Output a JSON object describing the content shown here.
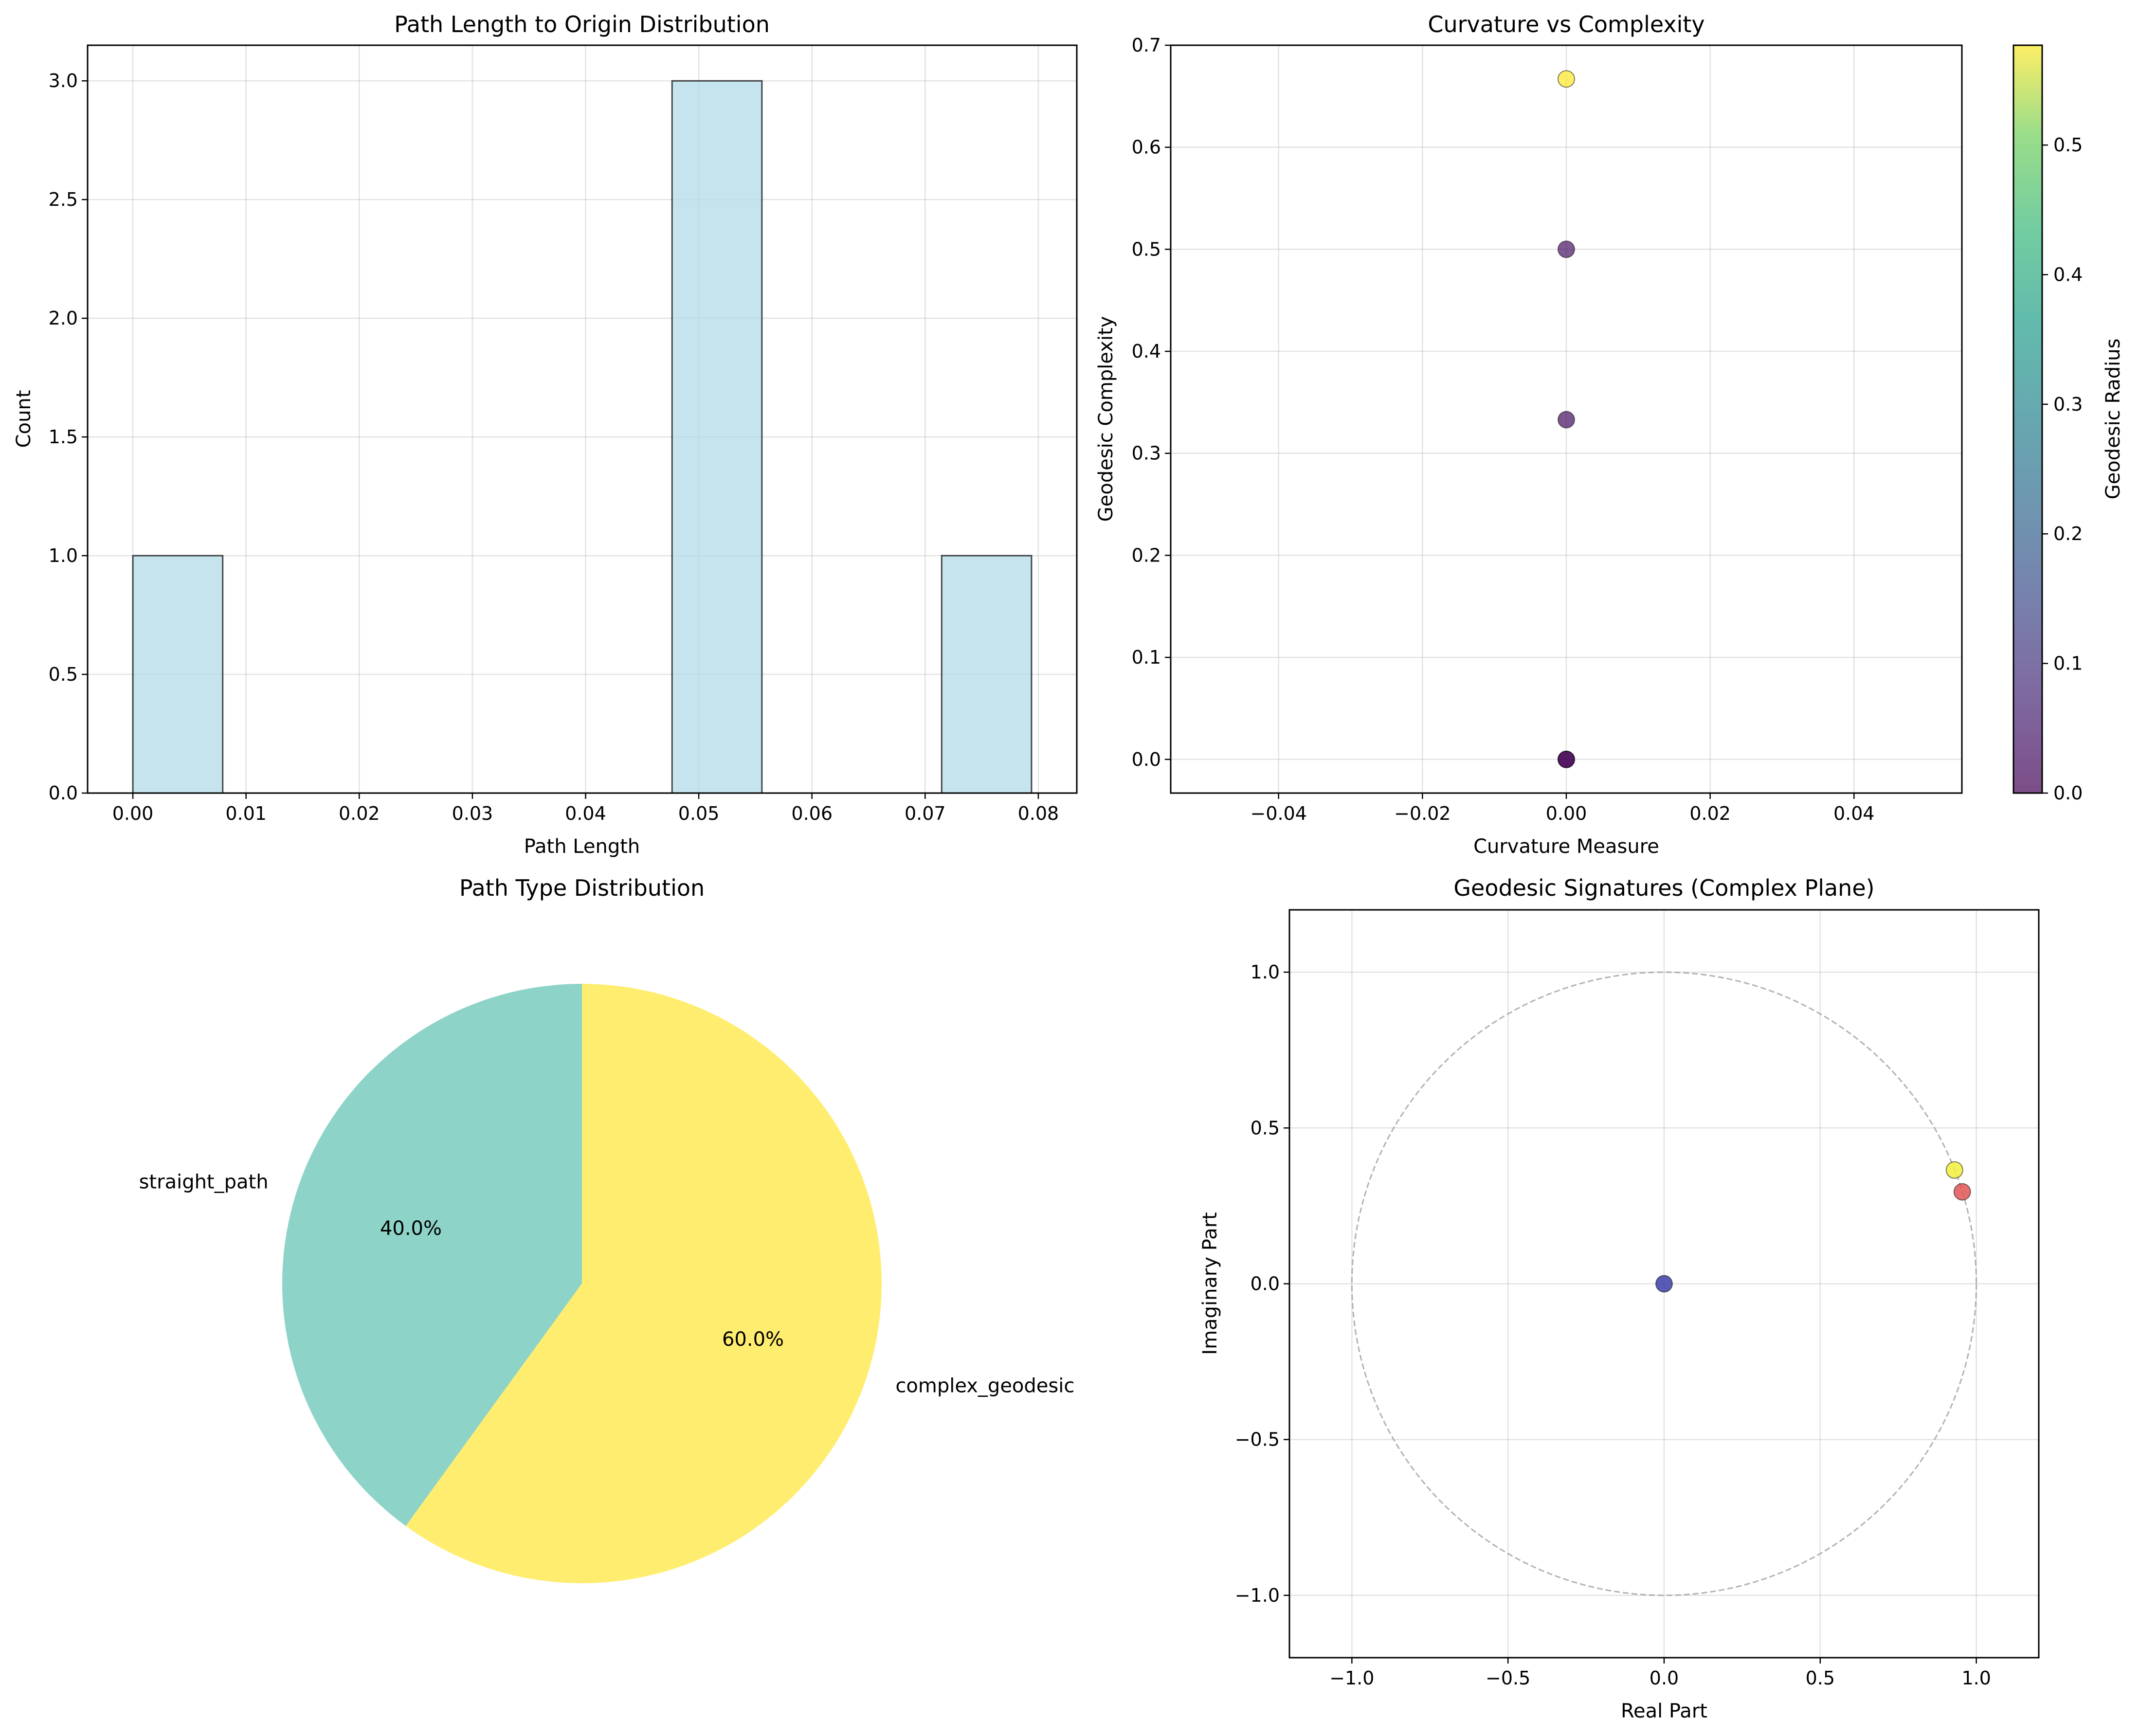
{
  "chart_data": [
    {
      "type": "bar",
      "title": "Path Length to Origin Distribution",
      "xlabel": "Path Length",
      "ylabel": "Count",
      "xlim": [
        -0.004,
        0.0834
      ],
      "ylim": [
        0,
        3.15
      ],
      "x_ticks": [
        "0.00",
        "0.01",
        "0.02",
        "0.03",
        "0.04",
        "0.05",
        "0.06",
        "0.07",
        "0.08"
      ],
      "y_ticks": [
        "0.0",
        "0.5",
        "1.0",
        "1.5",
        "2.0",
        "2.5",
        "3.0"
      ],
      "bins": [
        {
          "x0": 0.0,
          "x1": 0.00794,
          "count": 1
        },
        {
          "x0": 0.00794,
          "x1": 0.01588,
          "count": 0
        },
        {
          "x0": 0.01588,
          "x1": 0.02382,
          "count": 0
        },
        {
          "x0": 0.02382,
          "x1": 0.03176,
          "count": 0
        },
        {
          "x0": 0.03176,
          "x1": 0.0397,
          "count": 0
        },
        {
          "x0": 0.0397,
          "x1": 0.04764,
          "count": 0
        },
        {
          "x0": 0.04764,
          "x1": 0.05558,
          "count": 3
        },
        {
          "x0": 0.05558,
          "x1": 0.06352,
          "count": 0
        },
        {
          "x0": 0.06352,
          "x1": 0.07146,
          "count": 0
        },
        {
          "x0": 0.07146,
          "x1": 0.0794,
          "count": 1
        }
      ],
      "bar_color": "#add8e6",
      "grid": true
    },
    {
      "type": "scatter",
      "title": "Curvature vs Complexity",
      "xlabel": "Curvature Measure",
      "ylabel": "Geodesic Complexity",
      "xlim": [
        -0.055,
        0.055
      ],
      "ylim": [
        -0.033,
        0.7
      ],
      "x_ticks": [
        "−0.04",
        "−0.02",
        "0.00",
        "0.02",
        "0.04"
      ],
      "y_ticks": [
        "0.0",
        "0.1",
        "0.2",
        "0.3",
        "0.4",
        "0.5",
        "0.6",
        "0.7"
      ],
      "points": [
        {
          "x": 0.0,
          "y": 0.0,
          "radius": 0.0
        },
        {
          "x": 0.0,
          "y": 0.0,
          "radius": 0.0
        },
        {
          "x": 0.0,
          "y": 0.333,
          "radius": 0.02
        },
        {
          "x": 0.0,
          "y": 0.5,
          "radius": 0.03
        },
        {
          "x": 0.0,
          "y": 0.667,
          "radius": 0.577
        }
      ],
      "colorbar": {
        "label": "Geodesic Radius",
        "range": [
          0,
          0.577
        ],
        "ticks": [
          "0.0",
          "0.1",
          "0.2",
          "0.3",
          "0.4",
          "0.5"
        ],
        "colormap": "viridis"
      },
      "grid": true
    },
    {
      "type": "pie",
      "title": "Path Type Distribution",
      "slices": [
        {
          "label": "straight_path",
          "value": 40.0,
          "pct_label": "40.0%",
          "color": "#8dd3c7"
        },
        {
          "label": "complex_geodesic",
          "value": 60.0,
          "pct_label": "60.0%",
          "color": "#ffed6f"
        }
      ]
    },
    {
      "type": "scatter",
      "title": "Geodesic Signatures (Complex Plane)",
      "xlabel": "Real Part",
      "ylabel": "Imaginary Part",
      "xlim": [
        -1.2,
        1.2
      ],
      "ylim": [
        -1.2,
        1.2
      ],
      "x_ticks": [
        "−1.0",
        "−0.5",
        "0.0",
        "0.5",
        "1.0"
      ],
      "y_ticks": [
        "−1.0",
        "−0.5",
        "0.0",
        "0.5",
        "1.0"
      ],
      "unit_circle": true,
      "points": [
        {
          "x": 0.0,
          "y": 0.0,
          "color": "#3b3fa8"
        },
        {
          "x": 0.93,
          "y": 0.365,
          "color": "#f2ee3c"
        },
        {
          "x": 0.955,
          "y": 0.295,
          "color": "#e05555"
        }
      ],
      "grid": true
    }
  ]
}
